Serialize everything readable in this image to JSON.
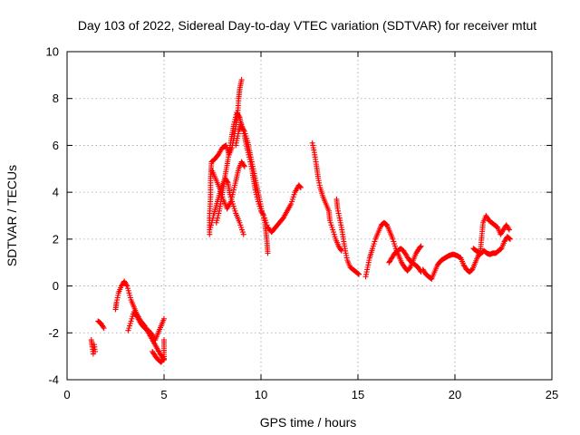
{
  "chart_data": {
    "type": "scatter",
    "title": "Day 103 of 2022, Sidereal Day-to-day VTEC variation (SDTVAR) for receiver mtut",
    "xlabel": "GPS time / hours",
    "ylabel": "SDTVAR / TECUs",
    "xlim": [
      0,
      25
    ],
    "ylim": [
      -4,
      10
    ],
    "xticks": [
      "0",
      "5",
      "10",
      "15",
      "20",
      "25"
    ],
    "yticks": [
      "-4",
      "-2",
      "0",
      "2",
      "4",
      "6",
      "8",
      "10"
    ],
    "grid": true,
    "marker": "+",
    "color": "#ff0000",
    "series": [
      {
        "name": "mtut",
        "segments": [
          [
            [
              1.25,
              -2.3
            ],
            [
              1.3,
              -2.6
            ],
            [
              1.35,
              -2.9
            ],
            [
              1.4,
              -2.5
            ],
            [
              1.45,
              -2.8
            ]
          ],
          [
            [
              1.6,
              -1.5
            ],
            [
              1.75,
              -1.6
            ],
            [
              1.9,
              -1.8
            ]
          ],
          [
            [
              2.5,
              -1.0
            ],
            [
              2.55,
              -0.7
            ],
            [
              2.65,
              -0.3
            ],
            [
              2.8,
              0.0
            ],
            [
              2.95,
              0.2
            ],
            [
              3.1,
              0.0
            ],
            [
              3.2,
              -0.3
            ],
            [
              3.3,
              -0.6
            ],
            [
              3.45,
              -0.9
            ],
            [
              3.6,
              -1.2
            ],
            [
              3.8,
              -1.5
            ],
            [
              4.0,
              -1.7
            ],
            [
              4.2,
              -2.0
            ],
            [
              4.4,
              -2.3
            ],
            [
              4.6,
              -2.6
            ],
            [
              4.8,
              -2.9
            ],
            [
              5.0,
              -3.15
            ]
          ],
          [
            [
              3.15,
              -1.9
            ],
            [
              3.3,
              -1.5
            ],
            [
              3.45,
              -1.1
            ],
            [
              3.6,
              -1.3
            ],
            [
              3.8,
              -1.6
            ],
            [
              4.0,
              -1.8
            ],
            [
              4.2,
              -1.9
            ],
            [
              4.4,
              -2.1
            ],
            [
              4.55,
              -2.3
            ],
            [
              4.7,
              -2.0
            ],
            [
              4.85,
              -1.7
            ],
            [
              5.0,
              -1.4
            ]
          ],
          [
            [
              4.4,
              -2.8
            ],
            [
              4.55,
              -3.0
            ],
            [
              4.7,
              -3.15
            ],
            [
              4.85,
              -3.25
            ],
            [
              5.0,
              -3.1
            ],
            [
              5.0,
              -2.3
            ]
          ],
          [
            [
              7.35,
              2.2
            ],
            [
              7.35,
              3.0
            ],
            [
              7.4,
              3.8
            ],
            [
              7.4,
              4.6
            ],
            [
              7.45,
              5.3
            ],
            [
              7.6,
              5.4
            ],
            [
              7.8,
              5.6
            ],
            [
              8.0,
              5.9
            ],
            [
              8.2,
              6.0
            ],
            [
              8.35,
              5.6
            ],
            [
              8.5,
              5.9
            ],
            [
              8.6,
              6.3
            ],
            [
              8.7,
              6.8
            ],
            [
              8.8,
              7.4
            ],
            [
              8.85,
              8.0
            ],
            [
              8.9,
              8.4
            ],
            [
              9.0,
              8.8
            ]
          ],
          [
            [
              7.4,
              2.5
            ],
            [
              7.55,
              3.0
            ],
            [
              7.75,
              3.6
            ],
            [
              7.95,
              4.2
            ],
            [
              8.15,
              4.6
            ],
            [
              8.3,
              4.4
            ],
            [
              8.4,
              3.9
            ],
            [
              8.55,
              3.5
            ],
            [
              8.7,
              3.1
            ],
            [
              8.9,
              2.7
            ],
            [
              9.1,
              2.2
            ]
          ],
          [
            [
              7.5,
              4.9
            ],
            [
              7.7,
              4.5
            ],
            [
              7.9,
              4.1
            ],
            [
              8.05,
              3.7
            ],
            [
              8.25,
              3.3
            ],
            [
              8.45,
              3.6
            ],
            [
              8.65,
              4.3
            ],
            [
              8.85,
              5.0
            ],
            [
              9.0,
              5.3
            ],
            [
              9.15,
              5.1
            ]
          ],
          [
            [
              7.7,
              2.7
            ],
            [
              7.85,
              3.2
            ],
            [
              8.0,
              3.9
            ],
            [
              8.15,
              4.7
            ],
            [
              8.3,
              5.4
            ],
            [
              8.45,
              6.2
            ],
            [
              8.6,
              6.9
            ],
            [
              8.75,
              7.4
            ],
            [
              8.9,
              7.2
            ],
            [
              9.0,
              6.8
            ],
            [
              9.15,
              6.6
            ],
            [
              9.3,
              6.2
            ],
            [
              9.45,
              5.6
            ],
            [
              9.6,
              5.0
            ],
            [
              9.75,
              4.4
            ],
            [
              9.9,
              3.8
            ],
            [
              10.05,
              3.2
            ],
            [
              10.2,
              2.7
            ],
            [
              10.3,
              2.0
            ],
            [
              10.35,
              1.4
            ]
          ],
          [
            [
              8.7,
              6.0
            ],
            [
              8.85,
              6.6
            ],
            [
              9.0,
              6.9
            ],
            [
              9.15,
              6.4
            ],
            [
              9.3,
              5.8
            ],
            [
              9.45,
              5.3
            ],
            [
              9.55,
              4.9
            ],
            [
              9.7,
              4.1
            ],
            [
              9.85,
              3.6
            ],
            [
              10.0,
              3.2
            ],
            [
              10.15,
              3.0
            ],
            [
              10.35,
              2.5
            ],
            [
              10.55,
              2.3
            ],
            [
              10.75,
              2.5
            ],
            [
              10.95,
              2.7
            ],
            [
              11.15,
              2.9
            ],
            [
              11.35,
              3.2
            ],
            [
              11.55,
              3.5
            ],
            [
              11.75,
              4.0
            ],
            [
              11.95,
              4.3
            ],
            [
              12.05,
              4.2
            ]
          ],
          [
            [
              12.65,
              6.1
            ],
            [
              12.75,
              5.7
            ],
            [
              12.85,
              5.2
            ],
            [
              12.95,
              4.6
            ],
            [
              13.05,
              4.2
            ],
            [
              13.2,
              3.8
            ],
            [
              13.35,
              3.5
            ],
            [
              13.5,
              3.2
            ],
            [
              13.55,
              2.8
            ],
            [
              13.7,
              2.4
            ],
            [
              13.85,
              2.0
            ],
            [
              14.0,
              1.7
            ],
            [
              14.15,
              1.5
            ]
          ],
          [
            [
              13.9,
              3.7
            ],
            [
              13.95,
              3.3
            ],
            [
              14.05,
              2.9
            ],
            [
              14.15,
              2.5
            ],
            [
              14.25,
              2.0
            ],
            [
              14.35,
              1.5
            ],
            [
              14.45,
              1.1
            ],
            [
              14.6,
              0.8
            ],
            [
              14.75,
              0.7
            ],
            [
              14.9,
              0.6
            ],
            [
              15.05,
              0.5
            ]
          ],
          [
            [
              15.4,
              0.4
            ],
            [
              15.5,
              0.8
            ],
            [
              15.6,
              1.2
            ],
            [
              15.75,
              1.6
            ],
            [
              15.9,
              2.0
            ],
            [
              16.05,
              2.3
            ],
            [
              16.2,
              2.6
            ],
            [
              16.35,
              2.7
            ],
            [
              16.5,
              2.6
            ],
            [
              16.65,
              2.3
            ],
            [
              16.8,
              2.0
            ],
            [
              16.95,
              1.6
            ],
            [
              17.1,
              1.3
            ],
            [
              17.25,
              1.0
            ],
            [
              17.4,
              0.8
            ],
            [
              17.55,
              0.65
            ],
            [
              17.7,
              0.8
            ],
            [
              17.85,
              1.1
            ],
            [
              18.0,
              1.4
            ],
            [
              18.15,
              1.6
            ],
            [
              18.25,
              1.7
            ]
          ],
          [
            [
              16.6,
              1.0
            ],
            [
              16.75,
              1.2
            ],
            [
              16.9,
              1.4
            ],
            [
              17.05,
              1.5
            ],
            [
              17.2,
              1.6
            ],
            [
              17.35,
              1.5
            ],
            [
              17.5,
              1.3
            ],
            [
              17.65,
              1.1
            ],
            [
              17.8,
              1.0
            ],
            [
              17.95,
              0.9
            ],
            [
              18.1,
              0.8
            ],
            [
              18.25,
              0.6
            ]
          ],
          [
            [
              18.35,
              0.7
            ],
            [
              18.5,
              0.5
            ],
            [
              18.65,
              0.4
            ],
            [
              18.8,
              0.3
            ],
            [
              18.95,
              0.6
            ],
            [
              19.1,
              0.9
            ],
            [
              19.3,
              1.1
            ],
            [
              19.5,
              1.2
            ],
            [
              19.7,
              1.3
            ],
            [
              19.9,
              1.35
            ],
            [
              20.1,
              1.3
            ],
            [
              20.3,
              1.2
            ],
            [
              20.45,
              0.9
            ],
            [
              20.6,
              0.7
            ],
            [
              20.75,
              0.6
            ],
            [
              20.9,
              0.7
            ],
            [
              21.05,
              1.0
            ],
            [
              21.2,
              1.3
            ],
            [
              21.35,
              1.4
            ],
            [
              21.5,
              1.5
            ],
            [
              21.65,
              1.4
            ],
            [
              21.8,
              1.35
            ],
            [
              21.95,
              1.4
            ],
            [
              22.1,
              1.4
            ],
            [
              22.25,
              1.5
            ],
            [
              22.4,
              1.6
            ],
            [
              22.55,
              1.9
            ],
            [
              22.7,
              2.1
            ],
            [
              22.85,
              2.0
            ]
          ],
          [
            [
              20.95,
              1.6
            ],
            [
              21.1,
              1.5
            ],
            [
              21.3,
              1.4
            ],
            [
              21.45,
              2.7
            ],
            [
              21.6,
              3.0
            ],
            [
              21.75,
              2.8
            ],
            [
              21.9,
              2.7
            ],
            [
              22.05,
              2.6
            ],
            [
              22.2,
              2.5
            ],
            [
              22.35,
              2.2
            ],
            [
              22.5,
              2.4
            ],
            [
              22.65,
              2.6
            ],
            [
              22.8,
              2.4
            ]
          ]
        ]
      }
    ]
  }
}
